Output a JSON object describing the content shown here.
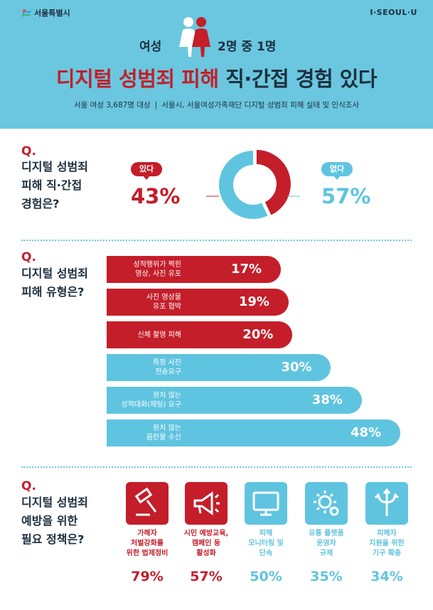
{
  "header": {
    "logo_seoul": "서울특별시",
    "logo_iseoulu": "I·SEOUL·U",
    "headline_left": "여성",
    "headline_right": "2명 중 1명",
    "title_red": "디지털 성범죄 피해",
    "title_dark": " 직·간접 경험 있다",
    "subtitle_left": "서울 여성 3,687명 대상",
    "subtitle_sep": "|",
    "subtitle_right": "서울시, 서울여성가족재단 디지털 성범죄 피해 실태 및 인식조사"
  },
  "colors": {
    "red": "#c41e2a",
    "blue": "#5fc4e0",
    "navy": "#1d2f3e",
    "header_bg": "#6ac7df"
  },
  "sections": [
    {
      "q": "Q.",
      "text": "디지털 성범죄\n피해 직·간접\n경험은?"
    },
    {
      "q": "Q.",
      "text": "디지털 성범죄\n피해 유형은?"
    },
    {
      "q": "Q.",
      "text": "디지털 성범죄\n예방을 위한\n필요 정책은?"
    }
  ],
  "chart_data": [
    {
      "type": "pie",
      "donut": true,
      "categories": [
        "있다",
        "없다"
      ],
      "values": [
        43,
        57
      ],
      "value_labels": [
        "43%",
        "57%"
      ],
      "colors": [
        "#c41e2a",
        "#5fc4e0"
      ]
    },
    {
      "type": "bar",
      "orientation": "horizontal",
      "categories": [
        "성적행위가 찍힌\n영상, 사진 유포",
        "사진 영상물\n유포 협박",
        "신체 촬영 피해",
        "특정 사진\n전송요구",
        "원치 않는\n성적대화(채팅) 요구",
        "원치 않는\n음란물 수신"
      ],
      "values": [
        17,
        19,
        20,
        30,
        38,
        48
      ],
      "value_labels": [
        "17%",
        "19%",
        "20%",
        "30%",
        "38%",
        "48%"
      ],
      "colors": [
        "#c41e2a",
        "#c41e2a",
        "#c41e2a",
        "#5fc4e0",
        "#5fc4e0",
        "#5fc4e0"
      ],
      "xlim": [
        0,
        48
      ]
    },
    {
      "type": "bar",
      "orientation": "icon-list",
      "categories": [
        "가해자\n처벌강화를\n위한 법제정비",
        "시민 예방교육,\n캠페인 등\n활성화",
        "피해\n모니터링 및\n단속",
        "유통 플랫폼\n운영자\n규제",
        "피해자\n지원을 위한\n기구 확충"
      ],
      "values": [
        79,
        57,
        50,
        35,
        34
      ],
      "value_labels": [
        "79%",
        "57%",
        "50%",
        "35%",
        "34%"
      ],
      "icons": [
        "gavel-icon",
        "megaphone-icon",
        "monitor-icon",
        "gear-icon",
        "directions-icon"
      ],
      "colors": [
        "#c41e2a",
        "#c41e2a",
        "#5fc4e0",
        "#5fc4e0",
        "#5fc4e0"
      ]
    }
  ]
}
